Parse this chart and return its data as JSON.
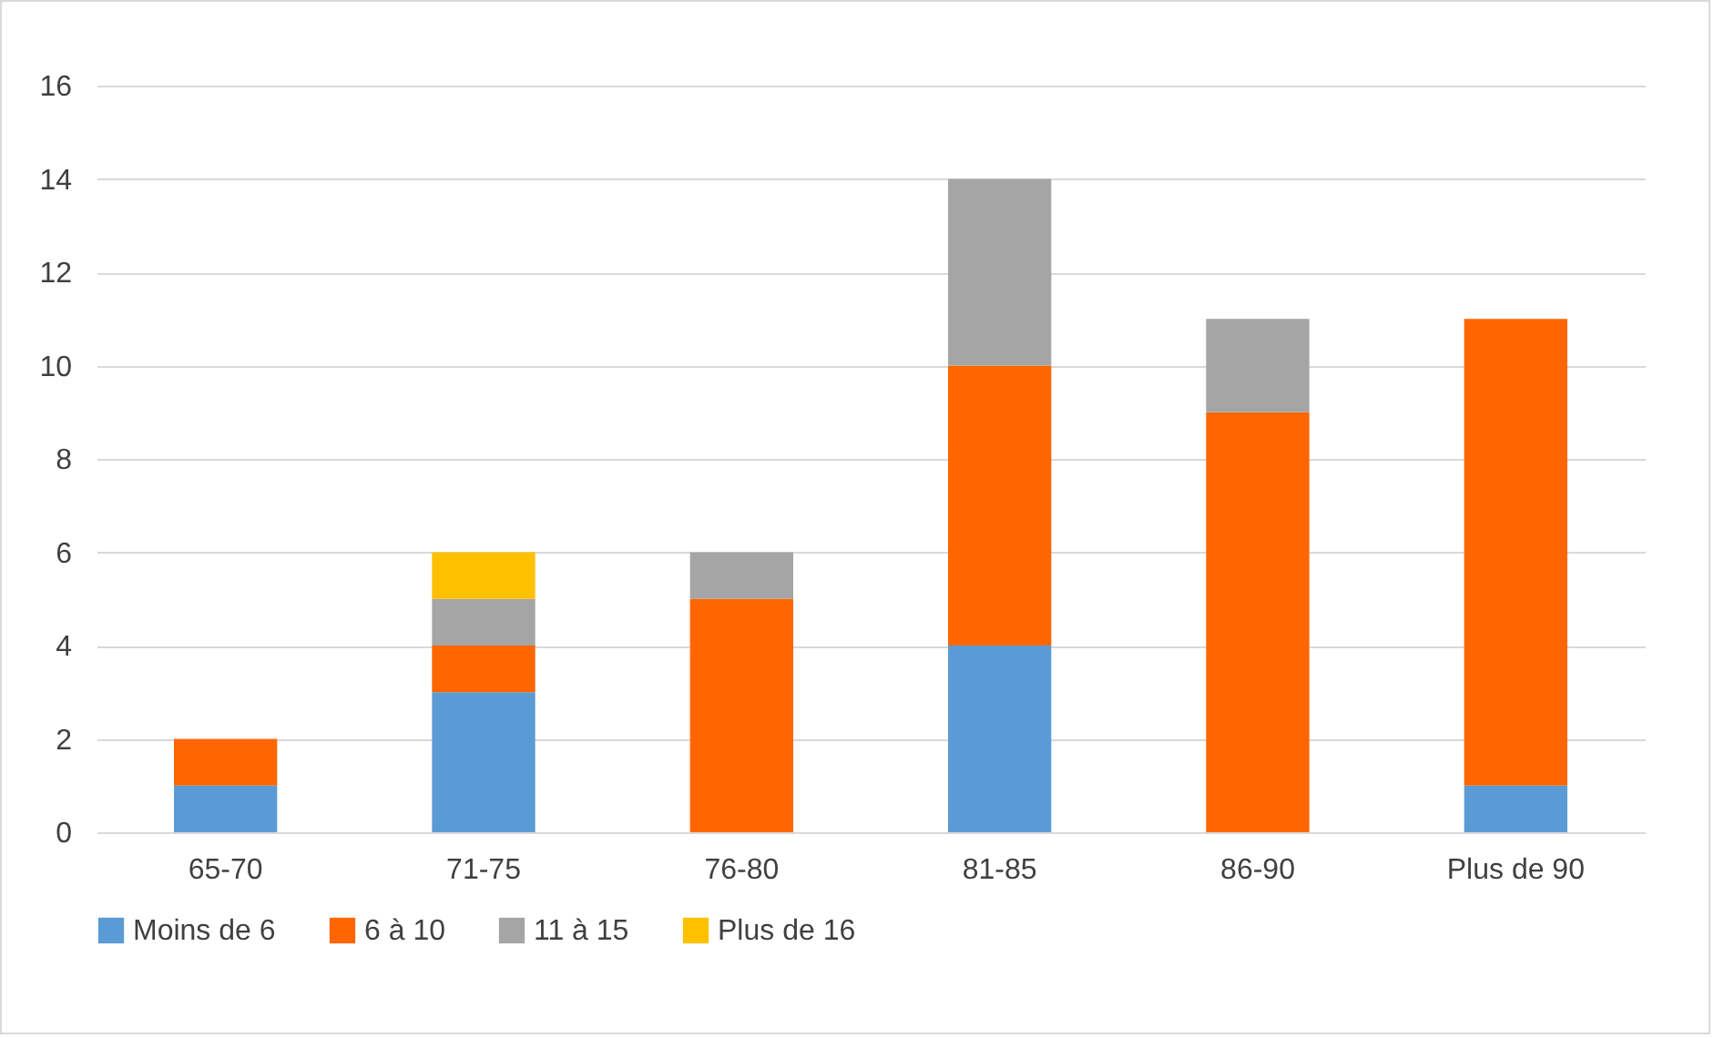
{
  "chart_data": {
    "type": "bar",
    "stacked": true,
    "categories": [
      "65-70",
      "71-75",
      "76-80",
      "81-85",
      "86-90",
      "Plus de 90"
    ],
    "series": [
      {
        "name": "Moins de 6",
        "color": "#5b9bd5",
        "values": [
          1,
          3,
          null,
          4,
          null,
          1
        ]
      },
      {
        "name": "6 à 10",
        "color": "#ff6600",
        "values": [
          1,
          1,
          5,
          6,
          9,
          10
        ]
      },
      {
        "name": "11 à 15",
        "color": "#a5a5a5",
        "values": [
          null,
          1,
          1,
          4,
          2,
          null
        ]
      },
      {
        "name": "Plus de 16",
        "color": "#ffc000",
        "values": [
          null,
          1,
          null,
          null,
          null,
          null
        ]
      }
    ],
    "ylim": [
      0,
      16
    ],
    "yticks": [
      0,
      2,
      4,
      6,
      8,
      10,
      12,
      14,
      16
    ],
    "grid": "y",
    "legend": "bottom"
  }
}
